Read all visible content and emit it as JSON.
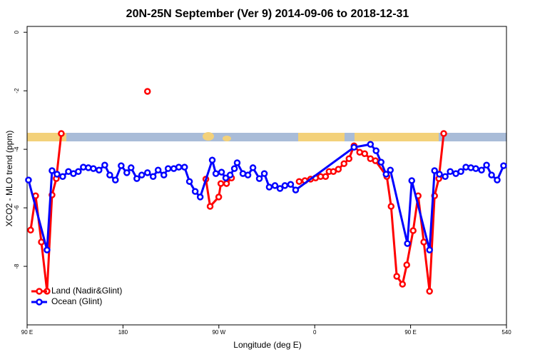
{
  "chart_data": {
    "type": "line",
    "title": "20N-25N September (Ver 9)   2014-09-06 to 2018-12-31",
    "x_label": "Longitude (deg E)",
    "y_label": "XCO2 - MLO trend (ppm)",
    "xlim": [
      90,
      540
    ],
    "xticks": [
      {
        "value": 90,
        "label": "90 E"
      },
      180,
      {
        "value": 270,
        "label": "90 W"
      },
      {
        "value": 360,
        "label": "0"
      },
      {
        "value": 450,
        "label": "90 E"
      },
      540
    ],
    "ylim": [
      -10,
      0.2
    ],
    "yticks": [
      0,
      -2,
      -4,
      -6,
      -8
    ],
    "legend": "bottom-left",
    "series": [
      {
        "name": "Land (Nadir&Glint)",
        "color": "#ff0000",
        "x": [
          93.3,
          98.0,
          103.4,
          108.7,
          113.4,
          117.4,
          122.1,
          150,
          203,
          230,
          257.8,
          261.8,
          269.9,
          271.9,
          277.2,
          281.9,
          310,
          345.4,
          350.8,
          356.1,
          360.8,
          365.5,
          370.2,
          373.5,
          377.5,
          382.2,
          387.5,
          392.2,
          396.9,
          402.2,
          406.9,
          412.3,
          417.0,
          427.7,
          431.7,
          437.0,
          442.4,
          446.4,
          452.4,
          457.1,
          462.4,
          467.8,
          472.5,
          476.5,
          481.1
        ],
        "values": [
          -6.76,
          -5.59,
          -7.17,
          -8.85,
          -5.56,
          -5.0,
          -3.46,
          null,
          -2.02,
          null,
          -5.02,
          -5.95,
          -5.63,
          -5.17,
          -5.17,
          -4.98,
          null,
          -5.1,
          -5.07,
          -5.02,
          -4.98,
          -4.93,
          -4.93,
          -4.76,
          -4.76,
          -4.68,
          -4.49,
          -4.32,
          -3.88,
          -4.1,
          -4.15,
          -4.32,
          -4.39,
          -4.93,
          -5.95,
          -8.34,
          -8.61,
          -7.95,
          -6.78,
          -5.59,
          -7.17,
          -8.85,
          -5.59,
          -5.0,
          -3.46
        ]
      },
      {
        "name": "Ocean (Glint)",
        "color": "#0000ff",
        "x": [
          91.3,
          108.7,
          113.4,
          118.1,
          123.4,
          128.8,
          133.5,
          138.1,
          142.8,
          147.5,
          152.2,
          157.5,
          162.9,
          167.6,
          172.9,
          178.3,
          183.6,
          187.6,
          193.0,
          197.6,
          203.0,
          208.3,
          213.0,
          218.4,
          222.4,
          227.7,
          232.4,
          237.8,
          242.4,
          247.8,
          252.5,
          263.8,
          267.2,
          272.5,
          276.5,
          280.6,
          284.6,
          287.2,
          292.6,
          297.3,
          302.0,
          308.0,
          312.7,
          317.3,
          322.7,
          327.4,
          332.0,
          337.4,
          342.1,
          396.9,
          412.3,
          417.6,
          422.3,
          427.0,
          431.0,
          447.0,
          451.1,
          467.8,
          472.5,
          477.1,
          482.5,
          487.2,
          492.5,
          497.2,
          501.9,
          506.6,
          511.2,
          516.6,
          521.3,
          526.0,
          531.3,
          537.3
        ],
        "values": [
          -5.05,
          -7.44,
          -4.73,
          -4.85,
          -4.93,
          -4.76,
          -4.83,
          -4.76,
          -4.61,
          -4.63,
          -4.66,
          -4.71,
          -4.54,
          -4.88,
          -5.05,
          -4.56,
          -4.8,
          -4.63,
          -5.0,
          -4.88,
          -4.8,
          -4.93,
          -4.71,
          -4.88,
          -4.66,
          -4.66,
          -4.61,
          -4.61,
          -5.1,
          -5.44,
          -5.63,
          -4.37,
          -4.83,
          -4.78,
          -4.98,
          -4.88,
          -4.66,
          -4.46,
          -4.83,
          -4.88,
          -4.63,
          -5.0,
          -4.83,
          -5.29,
          -5.24,
          -5.34,
          -5.24,
          -5.2,
          -5.39,
          -3.93,
          -3.83,
          -4.05,
          -4.44,
          -4.85,
          -4.71,
          -7.22,
          -5.07,
          -7.44,
          -4.73,
          -4.85,
          -4.93,
          -4.76,
          -4.83,
          -4.76,
          -4.61,
          -4.63,
          -4.66,
          -4.71,
          -4.54,
          -4.88,
          -5.05,
          -4.56
        ]
      }
    ]
  }
}
